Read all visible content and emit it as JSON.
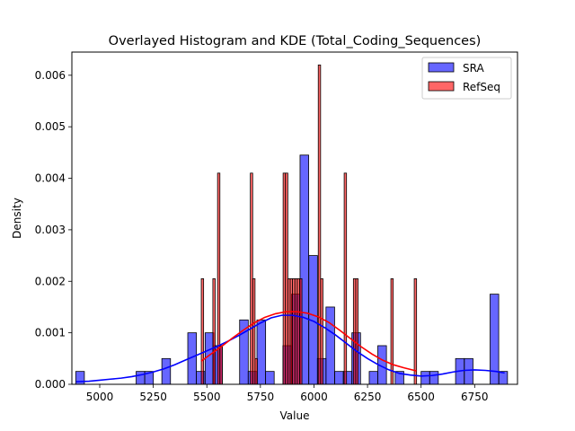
{
  "chart_data": {
    "type": "bar",
    "title": "Overlayed Histogram and KDE (Total_Coding_Sequences)",
    "xlabel": "Value",
    "ylabel": "Density",
    "xlim": [
      4870,
      6950
    ],
    "ylim": [
      0,
      0.00645
    ],
    "xticks": [
      5000,
      5250,
      5500,
      5750,
      6000,
      6250,
      6500,
      6750
    ],
    "yticks": [
      0.0,
      0.001,
      0.002,
      0.003,
      0.004,
      0.005,
      0.006
    ],
    "ytick_labels": [
      "0.000",
      "0.001",
      "0.002",
      "0.003",
      "0.004",
      "0.005",
      "0.006"
    ],
    "legend_position": "top-right",
    "series": [
      {
        "name": "SRA",
        "color": "#0000ff",
        "bin_width": 40.3,
        "bins": [
          {
            "x0": 4888,
            "y": 0.00025
          },
          {
            "x0": 5170,
            "y": 0.00025
          },
          {
            "x0": 5210,
            "y": 0.00025
          },
          {
            "x0": 5290,
            "y": 0.0005
          },
          {
            "x0": 5411,
            "y": 0.001
          },
          {
            "x0": 5451,
            "y": 0.00025
          },
          {
            "x0": 5492,
            "y": 0.001
          },
          {
            "x0": 5532,
            "y": 0.00075
          },
          {
            "x0": 5653,
            "y": 0.00125
          },
          {
            "x0": 5693,
            "y": 0.00025
          },
          {
            "x0": 5734,
            "y": 0.00125
          },
          {
            "x0": 5774,
            "y": 0.00025
          },
          {
            "x0": 5855,
            "y": 0.00075
          },
          {
            "x0": 5895,
            "y": 0.00175
          },
          {
            "x0": 5935,
            "y": 0.00445
          },
          {
            "x0": 5976,
            "y": 0.0025
          },
          {
            "x0": 6016,
            "y": 0.0005
          },
          {
            "x0": 6056,
            "y": 0.0015
          },
          {
            "x0": 6097,
            "y": 0.00025
          },
          {
            "x0": 6137,
            "y": 0.00025
          },
          {
            "x0": 6177,
            "y": 0.001
          },
          {
            "x0": 6258,
            "y": 0.00025
          },
          {
            "x0": 6298,
            "y": 0.00075
          },
          {
            "x0": 6379,
            "y": 0.00025
          },
          {
            "x0": 6500,
            "y": 0.00025
          },
          {
            "x0": 6540,
            "y": 0.00025
          },
          {
            "x0": 6661,
            "y": 0.0005
          },
          {
            "x0": 6702,
            "y": 0.0005
          },
          {
            "x0": 6822,
            "y": 0.00175
          },
          {
            "x0": 6863,
            "y": 0.00025
          }
        ],
        "kde": {
          "x": [
            4890,
            4950,
            5000,
            5050,
            5100,
            5150,
            5200,
            5250,
            5300,
            5350,
            5400,
            5450,
            5500,
            5550,
            5600,
            5650,
            5700,
            5750,
            5800,
            5850,
            5900,
            5950,
            6000,
            6050,
            6100,
            6150,
            6200,
            6250,
            6300,
            6350,
            6400,
            6450,
            6500,
            6550,
            6600,
            6650,
            6700,
            6750,
            6800,
            6850,
            6890
          ],
          "y": [
            5e-05,
            6e-05,
            8e-05,
            0.0001,
            0.00012,
            0.00015,
            0.00019,
            0.00024,
            0.0003,
            0.00038,
            0.00047,
            0.00056,
            0.00065,
            0.00074,
            0.00084,
            0.00095,
            0.00107,
            0.00119,
            0.00129,
            0.00134,
            0.00134,
            0.0013,
            0.00122,
            0.0011,
            0.00096,
            0.0008,
            0.00064,
            0.0005,
            0.00038,
            0.00028,
            0.00021,
            0.00018,
            0.00016,
            0.00017,
            0.0002,
            0.00024,
            0.00027,
            0.00028,
            0.00027,
            0.00025,
            0.00022
          ]
        }
      },
      {
        "name": "RefSeq",
        "color": "#ff0000",
        "bin_width": 10.95,
        "bins": [
          {
            "x0": 5474,
            "y": 0.00205
          },
          {
            "x0": 5528,
            "y": 0.00205
          },
          {
            "x0": 5550,
            "y": 0.0041
          },
          {
            "x0": 5561,
            "y": 0.00075
          },
          {
            "x0": 5703,
            "y": 0.0041
          },
          {
            "x0": 5714,
            "y": 0.00205
          },
          {
            "x0": 5725,
            "y": 0.0005
          },
          {
            "x0": 5856,
            "y": 0.0041
          },
          {
            "x0": 5867,
            "y": 0.0041
          },
          {
            "x0": 5878,
            "y": 0.00205
          },
          {
            "x0": 5889,
            "y": 0.00205
          },
          {
            "x0": 5900,
            "y": 0.00205
          },
          {
            "x0": 5911,
            "y": 0.00205
          },
          {
            "x0": 5922,
            "y": 0.00205
          },
          {
            "x0": 5933,
            "y": 0.00205
          },
          {
            "x0": 6020,
            "y": 0.0062
          },
          {
            "x0": 6031,
            "y": 0.00205
          },
          {
            "x0": 6141,
            "y": 0.0041
          },
          {
            "x0": 6184,
            "y": 0.00205
          },
          {
            "x0": 6195,
            "y": 0.00205
          },
          {
            "x0": 6359,
            "y": 0.00205
          },
          {
            "x0": 6468,
            "y": 0.00205
          }
        ],
        "kde": {
          "x": [
            5474,
            5520,
            5570,
            5620,
            5670,
            5720,
            5770,
            5820,
            5870,
            5920,
            5970,
            6020,
            6070,
            6120,
            6170,
            6220,
            6270,
            6320,
            6370,
            6420,
            6479
          ],
          "y": [
            0.00045,
            0.00059,
            0.00074,
            0.0009,
            0.00105,
            0.00119,
            0.0013,
            0.00137,
            0.00141,
            0.00141,
            0.00138,
            0.00131,
            0.0012,
            0.00105,
            0.00089,
            0.00073,
            0.00059,
            0.00047,
            0.00038,
            0.00032,
            0.00026
          ]
        }
      }
    ]
  }
}
